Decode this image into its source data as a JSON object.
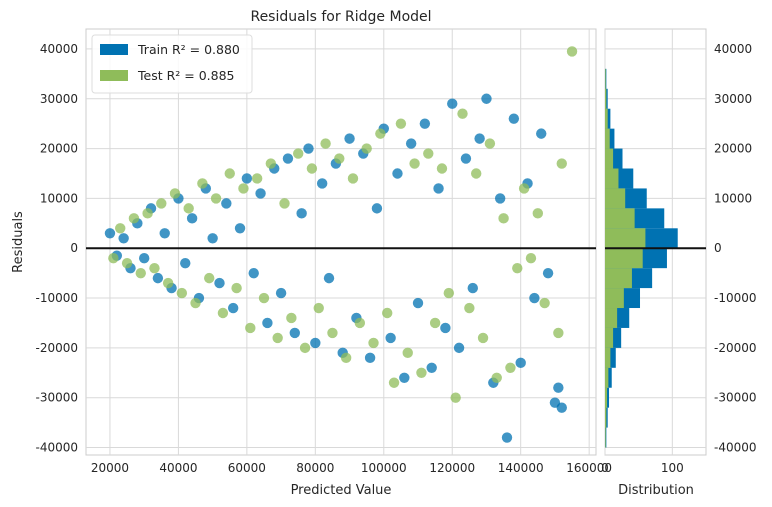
{
  "chart_data": {
    "type": "scatter",
    "title": "Residuals for Ridge Model",
    "xlabel": "Predicted Value",
    "ylabel": "Residuals",
    "xlim": [
      13000,
      162000
    ],
    "ylim": [
      -41500,
      44000
    ],
    "x_ticks": [
      "20000",
      "40000",
      "60000",
      "80000",
      "100000",
      "120000",
      "140000",
      "160000"
    ],
    "y_ticks": [
      "-40000",
      "-30000",
      "-20000",
      "-10000",
      "0",
      "10000",
      "20000",
      "30000",
      "40000"
    ],
    "grid": true,
    "legend_position": "top-left",
    "series": [
      {
        "name": "Train",
        "legend_label": "Train R² = 0.880",
        "color": "#0072b2",
        "points": [
          [
            20000,
            3000
          ],
          [
            22000,
            -1500
          ],
          [
            24000,
            2000
          ],
          [
            26000,
            -4000
          ],
          [
            28000,
            5000
          ],
          [
            30000,
            -2000
          ],
          [
            32000,
            8000
          ],
          [
            34000,
            -6000
          ],
          [
            36000,
            3000
          ],
          [
            38000,
            -8000
          ],
          [
            40000,
            10000
          ],
          [
            42000,
            -3000
          ],
          [
            44000,
            6000
          ],
          [
            46000,
            -10000
          ],
          [
            48000,
            12000
          ],
          [
            50000,
            2000
          ],
          [
            52000,
            -7000
          ],
          [
            54000,
            9000
          ],
          [
            56000,
            -12000
          ],
          [
            58000,
            4000
          ],
          [
            60000,
            14000
          ],
          [
            62000,
            -5000
          ],
          [
            64000,
            11000
          ],
          [
            66000,
            -15000
          ],
          [
            68000,
            16000
          ],
          [
            70000,
            -9000
          ],
          [
            72000,
            18000
          ],
          [
            74000,
            -17000
          ],
          [
            76000,
            7000
          ],
          [
            78000,
            20000
          ],
          [
            80000,
            -19000
          ],
          [
            82000,
            13000
          ],
          [
            84000,
            -6000
          ],
          [
            86000,
            17000
          ],
          [
            88000,
            -21000
          ],
          [
            90000,
            22000
          ],
          [
            92000,
            -14000
          ],
          [
            94000,
            19000
          ],
          [
            96000,
            -22000
          ],
          [
            98000,
            8000
          ],
          [
            100000,
            24000
          ],
          [
            102000,
            -18000
          ],
          [
            104000,
            15000
          ],
          [
            106000,
            -26000
          ],
          [
            108000,
            21000
          ],
          [
            110000,
            -11000
          ],
          [
            112000,
            25000
          ],
          [
            114000,
            -24000
          ],
          [
            116000,
            12000
          ],
          [
            118000,
            -16000
          ],
          [
            120000,
            29000
          ],
          [
            122000,
            -20000
          ],
          [
            124000,
            18000
          ],
          [
            126000,
            -8000
          ],
          [
            128000,
            22000
          ],
          [
            130000,
            30000
          ],
          [
            132000,
            -27000
          ],
          [
            134000,
            10000
          ],
          [
            136000,
            -38000
          ],
          [
            138000,
            26000
          ],
          [
            140000,
            -23000
          ],
          [
            142000,
            13000
          ],
          [
            144000,
            -10000
          ],
          [
            146000,
            23000
          ],
          [
            148000,
            -5000
          ],
          [
            150000,
            -31000
          ],
          [
            151000,
            -28000
          ],
          [
            152000,
            -32000
          ]
        ]
      },
      {
        "name": "Test",
        "legend_label": "Test R² = 0.885",
        "color": "#8fbc5a",
        "points": [
          [
            21000,
            -2000
          ],
          [
            23000,
            4000
          ],
          [
            25000,
            -3000
          ],
          [
            27000,
            6000
          ],
          [
            29000,
            -5000
          ],
          [
            31000,
            7000
          ],
          [
            33000,
            -4000
          ],
          [
            35000,
            9000
          ],
          [
            37000,
            -7000
          ],
          [
            39000,
            11000
          ],
          [
            41000,
            -9000
          ],
          [
            43000,
            8000
          ],
          [
            45000,
            -11000
          ],
          [
            47000,
            13000
          ],
          [
            49000,
            -6000
          ],
          [
            51000,
            10000
          ],
          [
            53000,
            -13000
          ],
          [
            55000,
            15000
          ],
          [
            57000,
            -8000
          ],
          [
            59000,
            12000
          ],
          [
            61000,
            -16000
          ],
          [
            63000,
            14000
          ],
          [
            65000,
            -10000
          ],
          [
            67000,
            17000
          ],
          [
            69000,
            -18000
          ],
          [
            71000,
            9000
          ],
          [
            73000,
            -14000
          ],
          [
            75000,
            19000
          ],
          [
            77000,
            -20000
          ],
          [
            79000,
            16000
          ],
          [
            81000,
            -12000
          ],
          [
            83000,
            21000
          ],
          [
            85000,
            -17000
          ],
          [
            87000,
            18000
          ],
          [
            89000,
            -22000
          ],
          [
            91000,
            14000
          ],
          [
            93000,
            -15000
          ],
          [
            95000,
            20000
          ],
          [
            97000,
            -19000
          ],
          [
            99000,
            23000
          ],
          [
            101000,
            -13000
          ],
          [
            103000,
            -27000
          ],
          [
            105000,
            25000
          ],
          [
            107000,
            -21000
          ],
          [
            109000,
            17000
          ],
          [
            111000,
            -25000
          ],
          [
            113000,
            19000
          ],
          [
            115000,
            -15000
          ],
          [
            117000,
            16000
          ],
          [
            119000,
            -9000
          ],
          [
            121000,
            -30000
          ],
          [
            123000,
            27000
          ],
          [
            125000,
            -12000
          ],
          [
            127000,
            15000
          ],
          [
            129000,
            -18000
          ],
          [
            131000,
            21000
          ],
          [
            133000,
            -26000
          ],
          [
            135000,
            6000
          ],
          [
            137000,
            -24000
          ],
          [
            139000,
            -4000
          ],
          [
            141000,
            12000
          ],
          [
            143000,
            -2000
          ],
          [
            145000,
            7000
          ],
          [
            147000,
            -11000
          ],
          [
            151000,
            -17000
          ],
          [
            152000,
            17000
          ],
          [
            155000,
            39500
          ]
        ]
      }
    ],
    "distribution": {
      "xlabel": "Distribution",
      "x_ticks": [
        "0",
        "100"
      ],
      "xlim": [
        0,
        150
      ],
      "bin_centers": [
        -38000,
        -34000,
        -30000,
        -26000,
        -22000,
        -18000,
        -14000,
        -10000,
        -6000,
        -2000,
        2000,
        6000,
        10000,
        14000,
        18000,
        22000,
        26000,
        30000,
        34000
      ],
      "train_counts": [
        2,
        4,
        6,
        10,
        16,
        24,
        36,
        52,
        70,
        92,
        108,
        88,
        62,
        42,
        26,
        14,
        8,
        4,
        2
      ],
      "test_counts": [
        1,
        2,
        3,
        5,
        8,
        12,
        18,
        28,
        40,
        56,
        60,
        44,
        30,
        20,
        12,
        7,
        4,
        2,
        1
      ]
    }
  }
}
